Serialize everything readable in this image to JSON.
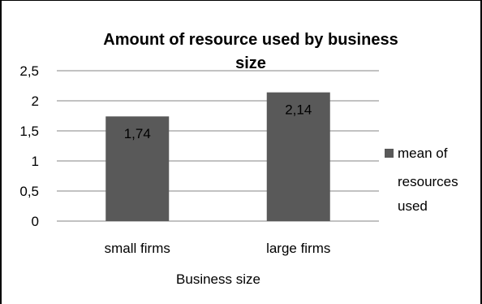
{
  "chart_data": {
    "type": "bar",
    "title": "Amount of resource used by business size",
    "title_lines": [
      "Amount of resource used by business",
      "size"
    ],
    "xlabel": "Business size",
    "ylabel": "",
    "categories": [
      "small firms",
      "large firms"
    ],
    "series": [
      {
        "name": "mean of resources used",
        "values": [
          1.74,
          2.14
        ]
      }
    ],
    "value_labels": [
      "1,74",
      "2,14"
    ],
    "y_ticks": [
      "0",
      "0,5",
      "1",
      "1,5",
      "2",
      "2,5"
    ],
    "ylim": [
      0,
      2.5
    ],
    "y_tick_step": 0.5,
    "grid": true,
    "legend": {
      "position": "right",
      "label_lines": [
        "mean of",
        "resources",
        "used"
      ]
    }
  },
  "colors": {
    "bar": "#595959",
    "grid": "#868686",
    "text": "#000000"
  }
}
